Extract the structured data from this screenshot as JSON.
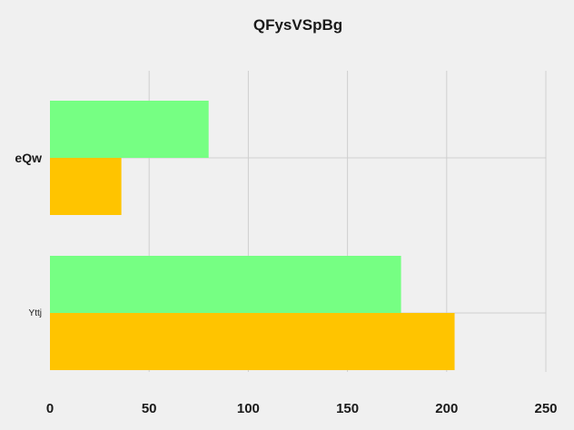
{
  "chart_data": {
    "type": "bar",
    "orientation": "horizontal",
    "title": "QFysVSpBg",
    "xlabel": "",
    "ylabel": "",
    "categories": [
      "eQw",
      "Yttj"
    ],
    "category_styles": [
      "bold",
      "small"
    ],
    "series": [
      {
        "color": "#76ff83",
        "values": [
          80,
          177
        ]
      },
      {
        "color": "#ffc400",
        "values": [
          36,
          204
        ]
      }
    ],
    "xlim": [
      0,
      250
    ],
    "xticks": [
      0,
      50,
      100,
      150,
      200,
      250
    ],
    "xtick_labels": [
      "0",
      "50",
      "100",
      "150",
      "200",
      "250"
    ],
    "grid": true,
    "legend": "none",
    "background": "#f0f0f0"
  }
}
